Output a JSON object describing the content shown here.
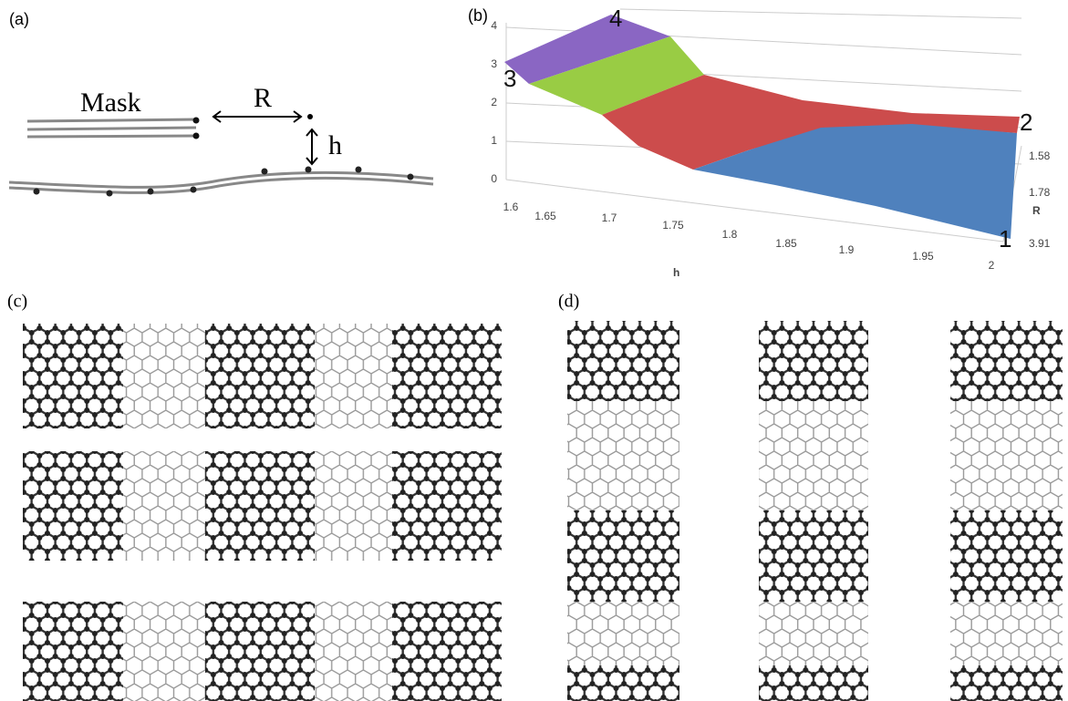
{
  "panels": [
    {
      "label": "(a)",
      "mask_label": "Mask",
      "distance_label": "R",
      "height_label": "h"
    },
    {
      "label": "(b)",
      "z_ticks": [
        "0",
        "1",
        "2",
        "3",
        "4"
      ],
      "h_ticks": [
        "1.6",
        "1.65",
        "1.7",
        "1.75",
        "1.8",
        "1.85",
        "1.9",
        "1.95",
        "2"
      ],
      "h_axis_label": "h",
      "r_ticks": [
        "1.58",
        "1.78",
        "3.91"
      ],
      "r_axis_label": "R",
      "region_labels": [
        "1",
        "2",
        "3",
        "4"
      ]
    },
    {
      "label": "(c)"
    },
    {
      "label": "(d)"
    }
  ]
}
